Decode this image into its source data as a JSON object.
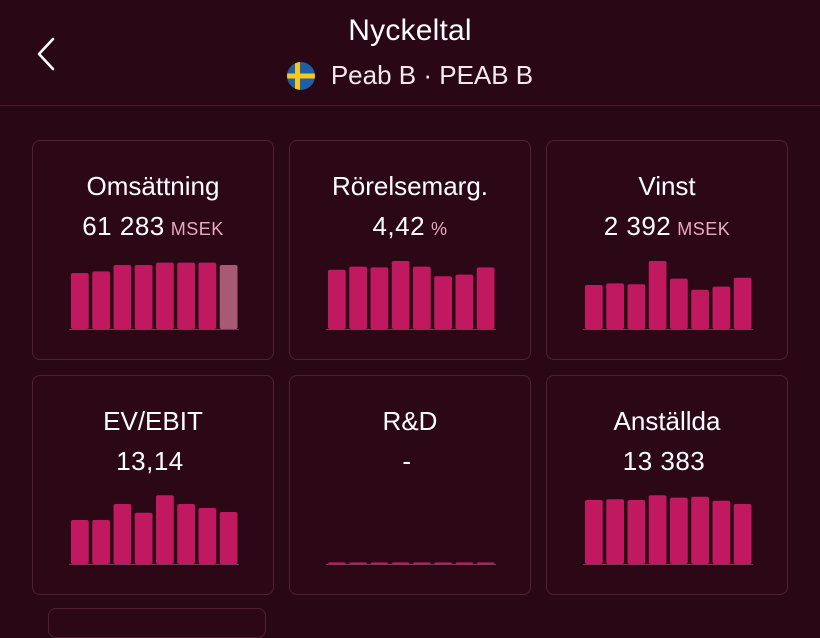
{
  "header": {
    "title": "Nyckeltal",
    "company": "Peab B · PEAB B",
    "back_icon": "chevron-left-icon",
    "flag_icon": "sweden-flag-icon"
  },
  "colors": {
    "background": "#2a0714",
    "bar": "#c0195f",
    "bar_estimate": "#a85a74",
    "unit": "#e9a9bf"
  },
  "cards": [
    {
      "title": "Omsättning",
      "value": "61 283",
      "unit": "MSEK",
      "bars": [
        0.7,
        0.72,
        0.8,
        0.8,
        0.83,
        0.83,
        0.83,
        0.8
      ],
      "highlight_last": true
    },
    {
      "title": "Rörelsemarg.",
      "value": "4,42",
      "unit": "%",
      "bars": [
        0.74,
        0.78,
        0.77,
        0.85,
        0.78,
        0.66,
        0.68,
        0.77
      ],
      "highlight_last": false
    },
    {
      "title": "Vinst",
      "value": "2 392",
      "unit": "MSEK",
      "bars": [
        0.55,
        0.57,
        0.56,
        0.85,
        0.63,
        0.49,
        0.53,
        0.64
      ],
      "highlight_last": false
    },
    {
      "title": "EV/EBIT",
      "value": "13,14",
      "unit": "",
      "bars": [
        0.55,
        0.55,
        0.75,
        0.64,
        0.86,
        0.75,
        0.7,
        0.65
      ],
      "highlight_last": false
    },
    {
      "title": "R&D",
      "value": "-",
      "unit": "",
      "bars": [
        0.02,
        0.02,
        0.02,
        0.02,
        0.02,
        0.02,
        0.02,
        0.02
      ],
      "highlight_last": false
    },
    {
      "title": "Anställda",
      "value": "13 383",
      "unit": "",
      "bars": [
        0.8,
        0.81,
        0.8,
        0.86,
        0.83,
        0.84,
        0.79,
        0.75
      ],
      "highlight_last": false
    }
  ]
}
